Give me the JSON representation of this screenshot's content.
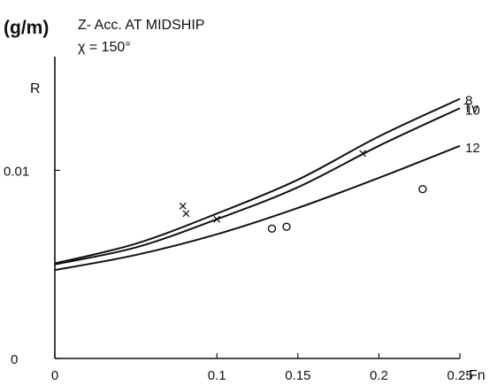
{
  "chart_data": {
    "type": "line",
    "title": "Z- Acc. AT MIDSHIP",
    "unit_label": "(g/m)",
    "heading_label": "χ = 150°",
    "ylabel": "R",
    "xlabel": "Fn",
    "legend_title": "Tv",
    "xlim": [
      0,
      0.25
    ],
    "ylim": [
      0,
      0.0167
    ],
    "x_ticks": [
      {
        "value": 0,
        "label": "0"
      },
      {
        "value": 0.1,
        "label": "0.1"
      },
      {
        "value": 0.15,
        "label": "0.15"
      },
      {
        "value": 0.2,
        "label": "0.2"
      },
      {
        "value": 0.25,
        "label": "0.25"
      }
    ],
    "y_ticks": [
      {
        "value": 0,
        "label": "0"
      },
      {
        "value": 0.01,
        "label": "0.01"
      }
    ],
    "series": [
      {
        "name": "8",
        "x": [
          0,
          0.05,
          0.1,
          0.15,
          0.2,
          0.25
        ],
        "y": [
          0.00505,
          0.0061,
          0.0077,
          0.0095,
          0.0118,
          0.0138
        ]
      },
      {
        "name": "10",
        "x": [
          0,
          0.05,
          0.1,
          0.15,
          0.2,
          0.25
        ],
        "y": [
          0.005,
          0.0059,
          0.0074,
          0.0091,
          0.0113,
          0.0133
        ]
      },
      {
        "name": "12",
        "x": [
          0,
          0.05,
          0.1,
          0.15,
          0.2,
          0.25
        ],
        "y": [
          0.0047,
          0.0055,
          0.0066,
          0.008,
          0.0096,
          0.0113
        ]
      }
    ],
    "markers": {
      "cross": [
        {
          "x": 0.079,
          "y": 0.0081
        },
        {
          "x": 0.081,
          "y": 0.0077
        },
        {
          "x": 0.1,
          "y": 0.0074
        },
        {
          "x": 0.19,
          "y": 0.0109
        }
      ],
      "circle": [
        {
          "x": 0.134,
          "y": 0.0069
        },
        {
          "x": 0.143,
          "y": 0.007
        },
        {
          "x": 0.227,
          "y": 0.009
        }
      ]
    }
  }
}
